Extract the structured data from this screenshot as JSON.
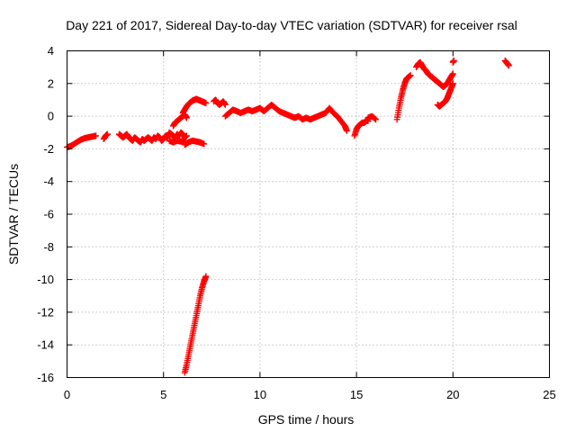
{
  "chart_data": {
    "type": "scatter",
    "title": "Day 221 of 2017, Sidereal Day-to-day VTEC variation (SDTVAR) for receiver rsal",
    "xlabel": "GPS time / hours",
    "ylabel": "SDTVAR / TECUs",
    "xlim": [
      0,
      25
    ],
    "ylim": [
      -16,
      4
    ],
    "xticks": [
      0,
      5,
      10,
      15,
      20,
      25
    ],
    "yticks": [
      -16,
      -14,
      -12,
      -10,
      -8,
      -6,
      -4,
      -2,
      0,
      2,
      4
    ],
    "xtick_labels": [
      "0",
      "5",
      "10",
      "15",
      "20",
      "25"
    ],
    "ytick_labels": [
      "-16",
      "-14",
      "-12",
      "-10",
      "-8",
      "-6",
      "-4",
      "-2",
      "0",
      "2",
      "4"
    ],
    "grid": true,
    "marker": "plus",
    "series": [
      {
        "name": "SDTVAR",
        "color": "#ff0000",
        "segments": [
          {
            "x": [
              0.0,
              0.15,
              0.3,
              0.5,
              0.7,
              0.9,
              1.1,
              1.3,
              1.5
            ],
            "y": [
              -1.9,
              -1.85,
              -1.75,
              -1.6,
              -1.45,
              -1.35,
              -1.3,
              -1.25,
              -1.2
            ]
          },
          {
            "x": [
              1.9,
              2.0,
              2.1
            ],
            "y": [
              -1.4,
              -1.2,
              -1.1
            ]
          },
          {
            "x": [
              2.7,
              2.8,
              2.9,
              3.0,
              3.1,
              3.2,
              3.3,
              3.4,
              3.5,
              3.6,
              3.7,
              3.8,
              3.9,
              4.0,
              4.1,
              4.2,
              4.3,
              4.4,
              4.5,
              4.6,
              4.7,
              4.8,
              4.9,
              5.0,
              5.1,
              5.2,
              5.3,
              5.4,
              5.5,
              5.6,
              5.7,
              5.8,
              5.9,
              6.0,
              6.1,
              6.2
            ],
            "y": [
              -1.1,
              -1.2,
              -1.3,
              -1.2,
              -1.1,
              -1.3,
              -1.4,
              -1.5,
              -1.3,
              -1.4,
              -1.5,
              -1.6,
              -1.4,
              -1.5,
              -1.4,
              -1.3,
              -1.4,
              -1.5,
              -1.3,
              -1.4,
              -1.2,
              -1.3,
              -1.5,
              -1.4,
              -1.2,
              -1.3,
              -1.0,
              -1.1,
              -1.2,
              -1.3,
              -1.1,
              -1.2,
              -1.0,
              -1.1,
              -1.3,
              -1.2
            ]
          },
          {
            "x": [
              5.3,
              5.5,
              5.7,
              5.9,
              6.1
            ],
            "y": [
              -1.5,
              -1.6,
              -1.5,
              -1.55,
              -1.5
            ]
          },
          {
            "x": [
              5.5,
              5.6,
              5.7,
              5.8,
              5.9,
              6.0,
              6.1,
              6.2
            ],
            "y": [
              -0.6,
              -0.4,
              -0.3,
              -0.2,
              -0.1,
              0.0,
              0.1,
              -0.1
            ]
          },
          {
            "x": [
              6.0,
              6.1,
              6.2,
              6.3,
              6.4,
              6.5,
              6.6,
              6.7,
              6.8,
              6.9,
              7.0,
              7.1,
              7.2
            ],
            "y": [
              0.2,
              0.4,
              0.6,
              0.75,
              0.85,
              0.95,
              1.0,
              1.05,
              1.0,
              0.95,
              0.9,
              0.85,
              0.8
            ]
          },
          {
            "x": [
              6.1,
              6.3,
              6.5,
              6.7,
              6.9,
              7.1
            ],
            "y": [
              -1.75,
              -1.6,
              -1.5,
              -1.55,
              -1.6,
              -1.7
            ]
          },
          {
            "x": [
              7.6,
              7.7,
              7.8,
              7.9,
              8.0,
              8.1,
              8.2
            ],
            "y": [
              0.9,
              1.0,
              0.8,
              0.7,
              0.8,
              0.9,
              0.7
            ]
          },
          {
            "x": [
              8.2,
              8.4,
              8.6,
              8.8,
              9.0,
              9.2,
              9.4,
              9.6,
              9.8,
              10.0,
              10.2,
              10.4,
              10.6,
              10.8,
              11.0,
              11.2,
              11.4,
              11.6,
              11.8,
              12.0,
              12.2,
              12.4,
              12.6,
              12.8,
              13.0,
              13.2,
              13.4,
              13.6,
              13.8,
              14.0,
              14.2,
              14.4,
              14.5
            ],
            "y": [
              0.0,
              0.2,
              0.4,
              0.3,
              0.2,
              0.3,
              0.4,
              0.3,
              0.4,
              0.5,
              0.3,
              0.5,
              0.7,
              0.5,
              0.3,
              0.2,
              0.1,
              0.0,
              -0.1,
              0.0,
              -0.2,
              -0.1,
              -0.2,
              -0.1,
              0.0,
              0.1,
              0.2,
              0.5,
              0.2,
              0.0,
              -0.3,
              -0.6,
              -0.9
            ]
          },
          {
            "x": [
              14.9,
              15.0,
              15.1,
              15.2,
              15.3,
              15.4,
              15.5,
              15.6
            ],
            "y": [
              -1.2,
              -0.8,
              -0.6,
              -0.5,
              -0.4,
              -0.4,
              -0.3,
              -0.3
            ]
          },
          {
            "x": [
              15.6,
              15.8,
              16.0
            ],
            "y": [
              -0.1,
              0.0,
              -0.2
            ]
          },
          {
            "x": [
              17.1,
              17.2,
              17.3,
              17.4,
              17.5,
              17.6,
              17.7,
              17.8
            ],
            "y": [
              -0.2,
              0.5,
              1.1,
              1.6,
              2.0,
              2.3,
              2.4,
              2.5
            ]
          },
          {
            "x": [
              18.1,
              18.2,
              18.3,
              18.4,
              18.5,
              18.6,
              18.7,
              18.8,
              18.9,
              19.0,
              19.1,
              19.2,
              19.3,
              19.4,
              19.5,
              19.6,
              19.7,
              19.8,
              19.9,
              20.0
            ],
            "y": [
              3.0,
              3.2,
              3.3,
              3.1,
              2.9,
              2.8,
              2.6,
              2.5,
              2.4,
              2.3,
              2.2,
              2.1,
              2.0,
              1.9,
              1.8,
              1.9,
              2.0,
              2.2,
              2.4,
              2.6
            ]
          },
          {
            "x": [
              19.2,
              19.3,
              19.4,
              19.5,
              19.6,
              19.7,
              19.8,
              19.9,
              20.0
            ],
            "y": [
              0.7,
              0.6,
              0.7,
              0.8,
              0.9,
              1.1,
              1.4,
              1.7,
              2.0
            ]
          },
          {
            "x": [
              20.0,
              20.05
            ],
            "y": [
              3.3,
              3.4
            ]
          },
          {
            "x": [
              22.7,
              22.8,
              22.9
            ],
            "y": [
              3.4,
              3.25,
              3.1
            ]
          },
          {
            "x": [
              6.1,
              6.2,
              6.3,
              6.4,
              6.5,
              6.6,
              6.7,
              6.8,
              6.9,
              7.0,
              7.1,
              7.2
            ],
            "y": [
              -15.7,
              -15.2,
              -14.6,
              -14.0,
              -13.4,
              -12.8,
              -12.2,
              -11.6,
              -11.0,
              -10.5,
              -10.1,
              -9.8
            ]
          }
        ]
      }
    ]
  }
}
